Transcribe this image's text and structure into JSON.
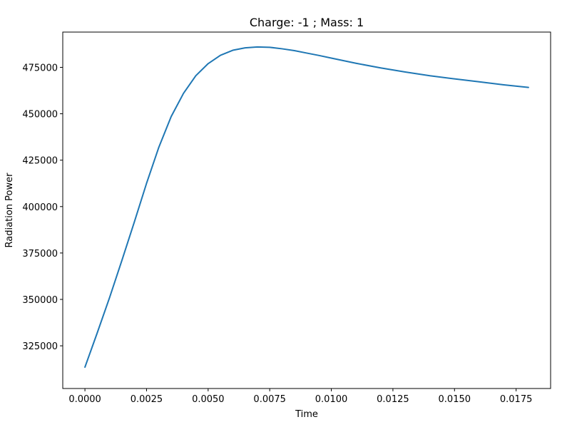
{
  "chart_data": {
    "type": "line",
    "title": "Charge: -1 ; Mass: 1",
    "xlabel": "Time",
    "ylabel": "Radiation Power",
    "xlim": [
      -0.0009,
      0.0189
    ],
    "ylim": [
      302000,
      494000
    ],
    "xticks": [
      0.0,
      0.0025,
      0.005,
      0.0075,
      0.01,
      0.0125,
      0.015,
      0.0175
    ],
    "xtick_labels": [
      "0.0000",
      "0.0025",
      "0.0050",
      "0.0075",
      "0.0100",
      "0.0125",
      "0.0150",
      "0.0175"
    ],
    "yticks": [
      325000,
      350000,
      375000,
      400000,
      425000,
      450000,
      475000
    ],
    "ytick_labels": [
      "325000",
      "350000",
      "375000",
      "400000",
      "425000",
      "450000",
      "475000"
    ],
    "grid": false,
    "series": [
      {
        "color": "#1f77b4",
        "x": [
          0.0,
          0.0005,
          0.001,
          0.0015,
          0.002,
          0.0025,
          0.003,
          0.0035,
          0.004,
          0.0045,
          0.005,
          0.0055,
          0.006,
          0.0065,
          0.007,
          0.0075,
          0.008,
          0.0085,
          0.009,
          0.0095,
          0.01,
          0.011,
          0.012,
          0.013,
          0.014,
          0.015,
          0.016,
          0.017,
          0.018
        ],
        "y": [
          313500,
          332000,
          351000,
          371000,
          391500,
          412500,
          432000,
          448500,
          461000,
          470500,
          477000,
          481500,
          484200,
          485500,
          486000,
          485800,
          485000,
          484000,
          482700,
          481400,
          480000,
          477200,
          474700,
          472500,
          470500,
          468800,
          467200,
          465600,
          464200
        ]
      }
    ]
  }
}
